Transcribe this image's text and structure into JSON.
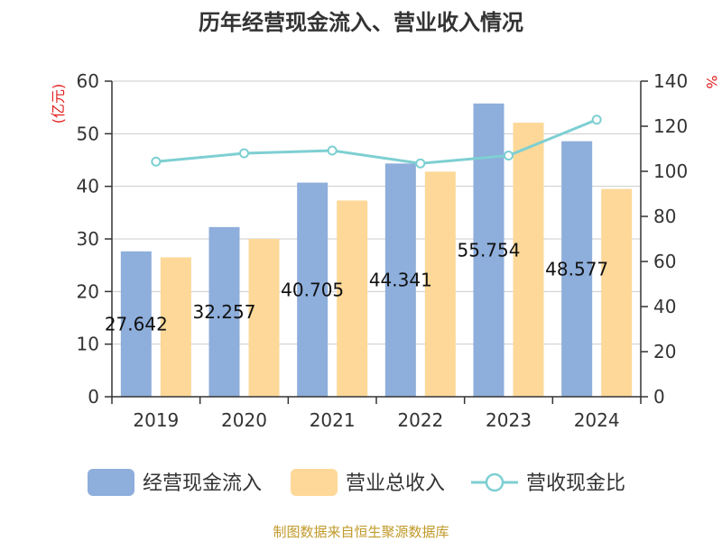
{
  "chart_data": {
    "type": "bar",
    "title": "历年经营现金流入、营业收入情况",
    "left_unit": "(亿元)",
    "right_unit": "%",
    "categories": [
      "2019",
      "2020",
      "2021",
      "2022",
      "2023",
      "2024"
    ],
    "series": [
      {
        "name": "经营现金流入",
        "type": "bar",
        "axis": "left",
        "color": "#8eaedb",
        "values": [
          27.642,
          32.257,
          40.705,
          44.341,
          55.754,
          48.577
        ],
        "labels": [
          "27.642",
          "32.257",
          "40.705",
          "44.341",
          "55.754",
          "48.577"
        ]
      },
      {
        "name": "营业总收入",
        "type": "bar",
        "axis": "left",
        "color": "#fdd898",
        "values": [
          26.5,
          30.0,
          37.3,
          42.8,
          52.1,
          39.5
        ]
      },
      {
        "name": "营收现金比",
        "type": "line",
        "axis": "right",
        "color": "#7ecfd2",
        "values": [
          104.3,
          108.0,
          109.2,
          103.5,
          107.0,
          122.9
        ]
      }
    ],
    "left_axis": {
      "min": 0,
      "max": 60,
      "ticks": [
        0,
        10,
        20,
        30,
        40,
        50,
        60
      ]
    },
    "right_axis": {
      "min": 0,
      "max": 140,
      "ticks": [
        0,
        20,
        40,
        60,
        80,
        100,
        120,
        140
      ]
    },
    "grid": true,
    "legend_position": "bottom"
  },
  "source": "制图数据来自恒生聚源数据库"
}
